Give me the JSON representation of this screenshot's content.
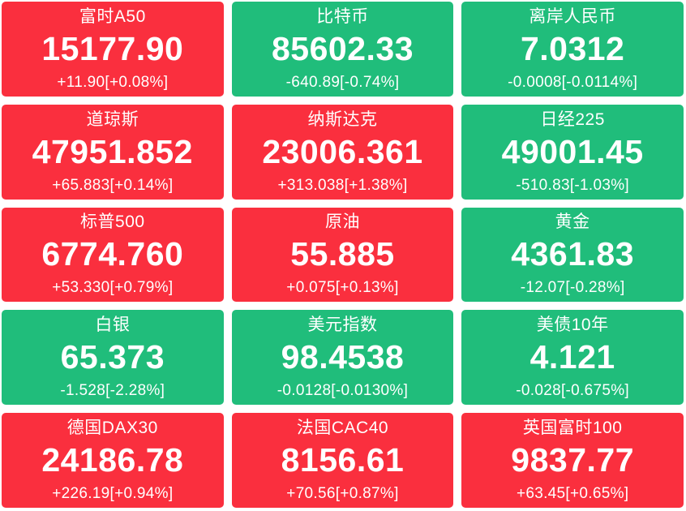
{
  "colors": {
    "up": "#fa2f3e",
    "down": "#20bd7b",
    "text": "#ffffff",
    "page_bg": "#ffffff"
  },
  "board": {
    "columns": 3,
    "rows": 5
  },
  "tiles": [
    {
      "name": "富时A50",
      "value": "15177.90",
      "change": "+11.90[+0.08%]",
      "direction": "up"
    },
    {
      "name": "比特币",
      "value": "85602.33",
      "change": "-640.89[-0.74%]",
      "direction": "down"
    },
    {
      "name": "离岸人民币",
      "value": "7.0312",
      "change": "-0.0008[-0.0114%]",
      "direction": "down"
    },
    {
      "name": "道琼斯",
      "value": "47951.852",
      "change": "+65.883[+0.14%]",
      "direction": "up"
    },
    {
      "name": "纳斯达克",
      "value": "23006.361",
      "change": "+313.038[+1.38%]",
      "direction": "up"
    },
    {
      "name": "日经225",
      "value": "49001.45",
      "change": "-510.83[-1.03%]",
      "direction": "down"
    },
    {
      "name": "标普500",
      "value": "6774.760",
      "change": "+53.330[+0.79%]",
      "direction": "up"
    },
    {
      "name": "原油",
      "value": "55.885",
      "change": "+0.075[+0.13%]",
      "direction": "up"
    },
    {
      "name": "黄金",
      "value": "4361.83",
      "change": "-12.07[-0.28%]",
      "direction": "down"
    },
    {
      "name": "白银",
      "value": "65.373",
      "change": "-1.528[-2.28%]",
      "direction": "down"
    },
    {
      "name": "美元指数",
      "value": "98.4538",
      "change": "-0.0128[-0.0130%]",
      "direction": "down"
    },
    {
      "name": "美债10年",
      "value": "4.121",
      "change": "-0.028[-0.675%]",
      "direction": "down"
    },
    {
      "name": "德国DAX30",
      "value": "24186.78",
      "change": "+226.19[+0.94%]",
      "direction": "up"
    },
    {
      "name": "法国CAC40",
      "value": "8156.61",
      "change": "+70.56[+0.87%]",
      "direction": "up"
    },
    {
      "name": "英国富时100",
      "value": "9837.77",
      "change": "+63.45[+0.65%]",
      "direction": "up"
    }
  ]
}
